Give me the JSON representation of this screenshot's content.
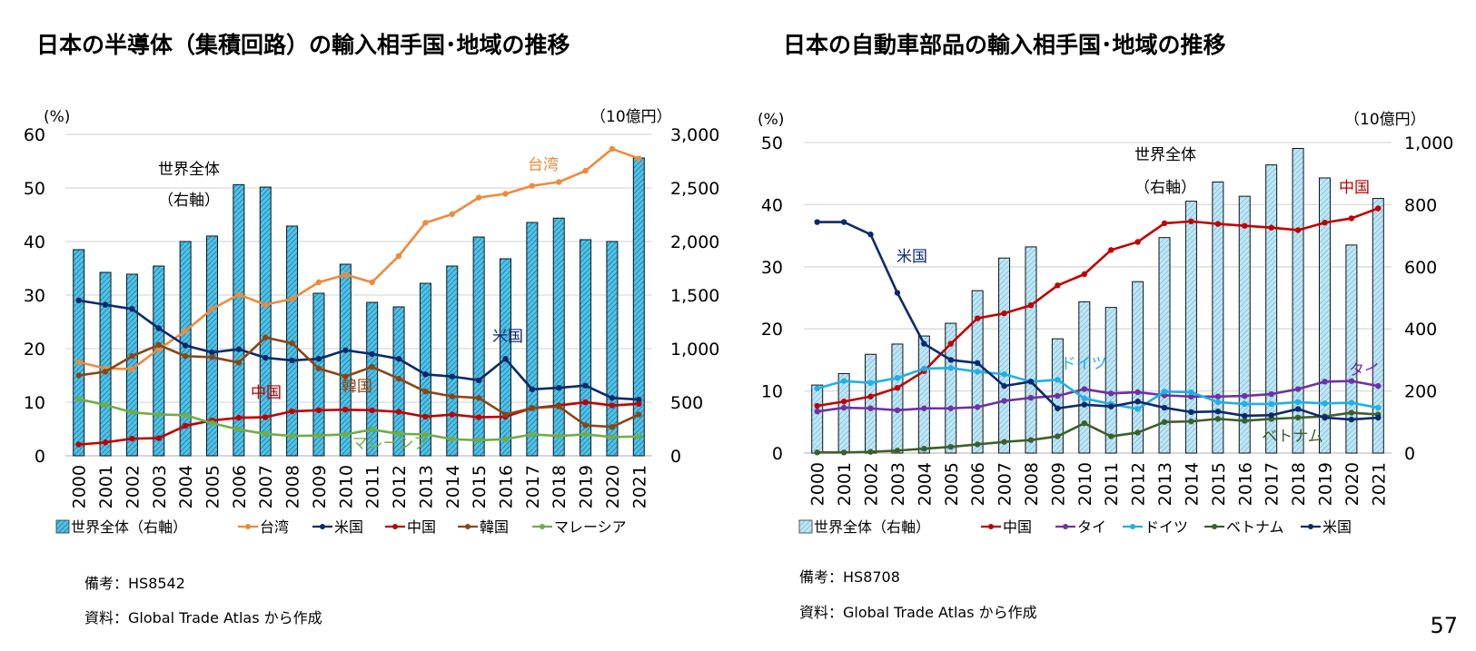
{
  "page_number": "57",
  "chart_data": [
    {
      "type": "bar+line",
      "title": "日本の半導体（集積回路）の輸入相手国･地域の推移",
      "left_unit": "(%)",
      "right_unit": "（10億円）",
      "ylim_left": [
        0,
        60
      ],
      "left_ticks": [
        "0",
        "10",
        "20",
        "30",
        "40",
        "50",
        "60"
      ],
      "ylim_right": [
        0,
        3000
      ],
      "right_ticks": [
        "0",
        "500",
        "1,000",
        "1,500",
        "2,000",
        "2,500",
        "3,000"
      ],
      "grid": true,
      "legend_position": "bottom",
      "categories": [
        "2000",
        "2001",
        "2002",
        "2003",
        "2004",
        "2005",
        "2006",
        "2007",
        "2008",
        "2009",
        "2010",
        "2011",
        "2012",
        "2013",
        "2014",
        "2015",
        "2016",
        "2017",
        "2018",
        "2019",
        "2020",
        "2021"
      ],
      "bar_series": {
        "name": "世界全体（右軸）",
        "annotation": [
          "世界全体",
          "（右軸）"
        ],
        "color": "#4cc3ea",
        "values": [
          1924,
          1712,
          1695,
          1771,
          2000,
          2051,
          2531,
          2508,
          2144,
          1517,
          1788,
          1432,
          1390,
          1610,
          1771,
          2042,
          1839,
          2178,
          2218,
          2017,
          2000,
          2780
        ]
      },
      "series": [
        {
          "name": "台湾",
          "label": "台湾",
          "color": "#ee8a3c",
          "values": [
            17.5,
            16.3,
            16.2,
            19.9,
            23.3,
            27.4,
            30.1,
            28.2,
            29.3,
            32.4,
            33.8,
            32.4,
            37.3,
            43.5,
            45.1,
            48.2,
            48.9,
            50.4,
            51.1,
            53.2,
            57.3,
            55.5
          ]
        },
        {
          "name": "米国",
          "label": "米国",
          "color": "#0b2a6b",
          "values": [
            29.0,
            28.2,
            27.4,
            23.8,
            20.6,
            19.3,
            19.9,
            18.3,
            17.8,
            18.1,
            19.7,
            19.0,
            18.1,
            15.2,
            14.8,
            14.1,
            18.1,
            12.4,
            12.7,
            13.1,
            10.8,
            10.5
          ]
        },
        {
          "name": "中国",
          "label": "中国",
          "color": "#c00000",
          "values": [
            2.1,
            2.5,
            3.2,
            3.3,
            5.6,
            6.6,
            7.1,
            7.2,
            8.3,
            8.5,
            8.6,
            8.5,
            8.2,
            7.3,
            7.7,
            7.2,
            7.3,
            8.9,
            9.4,
            10.0,
            9.4,
            9.7
          ]
        },
        {
          "name": "韓国",
          "label": "韓国",
          "color": "#8b4513",
          "values": [
            15.0,
            15.7,
            18.6,
            20.7,
            18.6,
            18.4,
            17.4,
            22.1,
            21.0,
            16.3,
            14.8,
            16.6,
            14.4,
            12.0,
            11.1,
            10.8,
            7.7,
            8.9,
            9.2,
            5.7,
            5.4,
            7.7
          ]
        },
        {
          "name": "マレーシア",
          "label": "マレーシア",
          "color": "#70ad47",
          "values": [
            10.6,
            9.5,
            8.1,
            7.7,
            7.6,
            6.1,
            4.9,
            4.1,
            3.7,
            3.8,
            4.0,
            4.9,
            4.1,
            4.0,
            3.1,
            2.9,
            3.1,
            4.0,
            3.7,
            4.0,
            3.5,
            3.6
          ]
        }
      ],
      "notes": [
        "備考：HS8542",
        "資料：Global Trade Atlas から作成"
      ]
    },
    {
      "type": "bar+line",
      "title": "日本の自動車部品の輸入相手国･地域の推移",
      "left_unit": "(%)",
      "right_unit": "（10億円）",
      "ylim_left": [
        0,
        50
      ],
      "left_ticks": [
        "0",
        "10",
        "20",
        "30",
        "40",
        "50"
      ],
      "ylim_right": [
        0,
        1000
      ],
      "right_ticks": [
        "0",
        "200",
        "400",
        "600",
        "800",
        "1,000"
      ],
      "grid": true,
      "legend_position": "bottom",
      "categories": [
        "2000",
        "2001",
        "2002",
        "2003",
        "2004",
        "2005",
        "2006",
        "2007",
        "2008",
        "2009",
        "2010",
        "2011",
        "2012",
        "2013",
        "2014",
        "2015",
        "2016",
        "2017",
        "2018",
        "2019",
        "2020",
        "2021"
      ],
      "bar_series": {
        "name": "世界全体（右軸）",
        "annotation": [
          "世界全体",
          "（右軸）"
        ],
        "color": "#bfe6f6",
        "values": [
          219,
          256,
          318,
          351,
          377,
          418,
          523,
          628,
          664,
          368,
          487,
          469,
          552,
          694,
          811,
          873,
          827,
          928,
          981,
          886,
          670,
          820
        ]
      },
      "series": [
        {
          "name": "中国",
          "label": "中国",
          "color": "#c00000",
          "values": [
            7.6,
            8.3,
            9.1,
            10.5,
            13.2,
            17.6,
            21.7,
            22.5,
            23.8,
            27.0,
            28.8,
            32.7,
            34.0,
            37.0,
            37.3,
            36.9,
            36.6,
            36.3,
            35.9,
            37.1,
            37.8,
            39.4
          ]
        },
        {
          "name": "タイ",
          "label": "タイ",
          "color": "#7030a0",
          "values": [
            6.7,
            7.3,
            7.2,
            6.9,
            7.2,
            7.2,
            7.4,
            8.4,
            8.9,
            9.2,
            10.3,
            9.6,
            9.8,
            9.3,
            9.1,
            9.1,
            9.2,
            9.5,
            10.3,
            11.5,
            11.6,
            10.8
          ]
        },
        {
          "name": "ドイツ",
          "label": "ドイツ",
          "color": "#1eb0e6",
          "values": [
            10.4,
            11.6,
            11.3,
            12.1,
            13.6,
            13.7,
            13.1,
            12.7,
            11.5,
            11.8,
            8.8,
            7.9,
            7.1,
            9.9,
            9.8,
            8.2,
            7.9,
            7.9,
            8.2,
            8.0,
            8.1,
            7.3
          ]
        },
        {
          "name": "ベトナム",
          "label": "ベトナム",
          "color": "#3d5f2a",
          "values": [
            0.1,
            0.1,
            0.2,
            0.4,
            0.7,
            1.0,
            1.4,
            1.8,
            2.1,
            2.7,
            4.8,
            2.7,
            3.3,
            5.0,
            5.1,
            5.5,
            5.2,
            5.5,
            5.7,
            5.9,
            6.5,
            6.2
          ]
        },
        {
          "name": "米国",
          "label": "米国",
          "color": "#0b2a6b",
          "values": [
            37.2,
            37.2,
            35.2,
            25.8,
            17.6,
            15.0,
            14.5,
            10.8,
            11.5,
            7.2,
            7.8,
            7.5,
            8.3,
            7.3,
            6.6,
            6.7,
            6.0,
            6.1,
            7.1,
            5.7,
            5.4,
            5.7
          ]
        }
      ],
      "notes": [
        "備考：HS8708",
        "資料：Global Trade Atlas から作成"
      ]
    }
  ]
}
